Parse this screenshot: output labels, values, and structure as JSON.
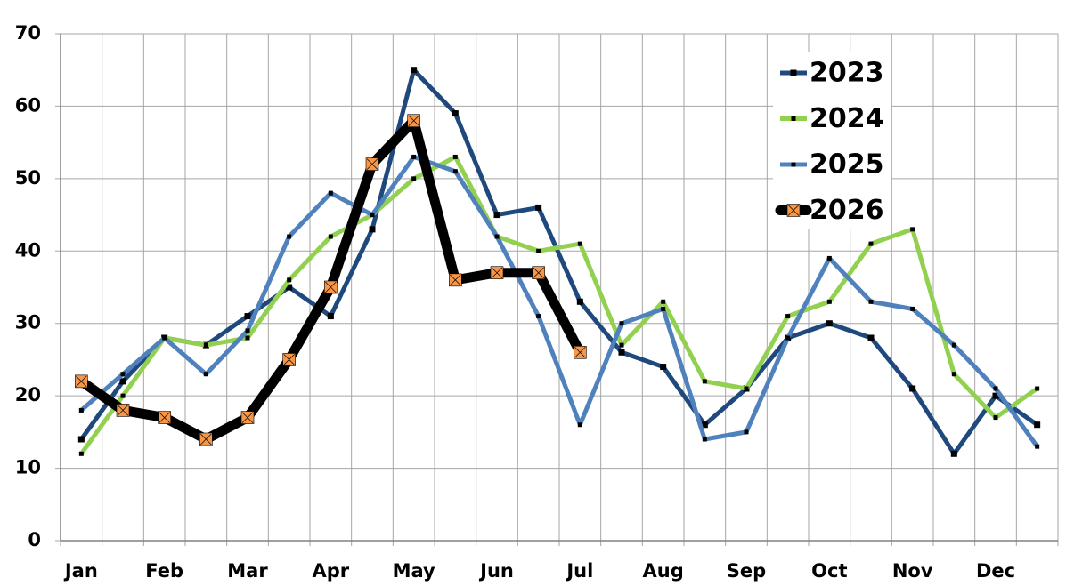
{
  "chart_data": {
    "type": "line",
    "categories": [
      "Jan",
      null,
      "Feb",
      null,
      "Mar",
      null,
      "Apr",
      null,
      "May",
      null,
      "Jun",
      null,
      "Jul",
      null,
      "Aug",
      null,
      "Sep",
      null,
      "Oct",
      null,
      "Nov",
      null,
      "Dec",
      null
    ],
    "series": [
      {
        "name": "2023",
        "color": "#1f497d",
        "marker_color": "#000000",
        "line_width": 5,
        "values": [
          14,
          22,
          28,
          27,
          31,
          35,
          31,
          43,
          65,
          59,
          45,
          46,
          33,
          26,
          24,
          16,
          21,
          28,
          30,
          28,
          21,
          12,
          20,
          16
        ]
      },
      {
        "name": "2024",
        "color": "#92d050",
        "marker_color": "#000000",
        "line_width": 5,
        "values": [
          12,
          20,
          28,
          27,
          28,
          36,
          42,
          45,
          50,
          53,
          42,
          40,
          41,
          27,
          33,
          22,
          21,
          31,
          33,
          41,
          43,
          23,
          17,
          21
        ]
      },
      {
        "name": "2025",
        "color": "#4f81bd",
        "marker_color": "#000000",
        "line_width": 5,
        "values": [
          18,
          23,
          28,
          23,
          29,
          42,
          48,
          45,
          53,
          51,
          42,
          31,
          16,
          30,
          32,
          14,
          15,
          28,
          39,
          33,
          32,
          27,
          21,
          13
        ]
      },
      {
        "name": "2026",
        "color": "#000000",
        "marker_color": "#f79646",
        "line_width": 11,
        "values": [
          22,
          18,
          17,
          14,
          17,
          25,
          35,
          52,
          58,
          36,
          37,
          37,
          26,
          null,
          null,
          null,
          null,
          null,
          null,
          null,
          null,
          null,
          null,
          null
        ]
      }
    ],
    "ylim": [
      0,
      70
    ],
    "yticks": [
      0,
      10,
      20,
      30,
      40,
      50,
      60,
      70
    ],
    "grid": true,
    "legend": "upper right"
  }
}
